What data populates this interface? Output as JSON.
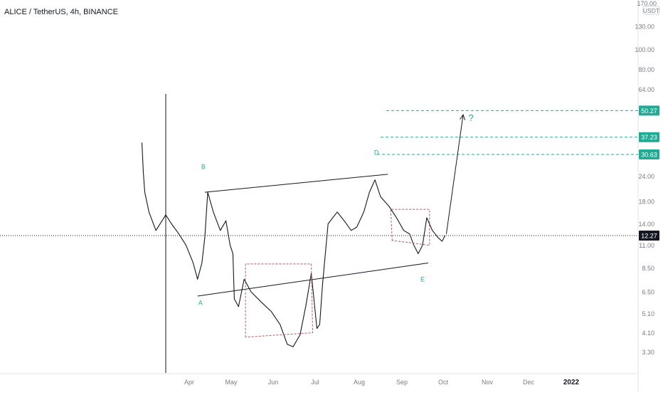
{
  "header": {
    "symbol_title": "ALICE / TetherUS, 4h, BINANCE"
  },
  "axis": {
    "currency_top": "170.00",
    "currency_unit": "USDT"
  },
  "chart_data": {
    "type": "line",
    "title": "ALICE / TetherUS, 4h, BINANCE",
    "scale": "log",
    "ylim": [
      2.9,
      175
    ],
    "x_ticks": [
      "Apr",
      "May",
      "Jun",
      "Jul",
      "Aug",
      "Sep",
      "Oct",
      "Nov",
      "Dec",
      "2022"
    ],
    "y_ticks": [
      130,
      100,
      80,
      64,
      24,
      18,
      14,
      11,
      8.5,
      6.5,
      5.1,
      4.1,
      3.3
    ],
    "y_tick_labels": [
      "130.00",
      "100.00",
      "80.00",
      "64.00",
      "24.00",
      "18.00",
      "14.00",
      "11.00",
      "8.50",
      "6.50",
      "5.10",
      "4.10",
      "3.30"
    ],
    "grid": false,
    "series": [
      {
        "values_x": [
          "Mar 15",
          "Mar 16",
          "Mar 17",
          "Mar 20",
          "Mar 25",
          "Apr 1",
          "Apr 5",
          "Apr 10",
          "Apr 15",
          "Apr 20",
          "Apr 23",
          "Apr 26",
          "Apr 28",
          "May 1",
          "May 5",
          "May 10",
          "May 14",
          "May 17",
          "May 19",
          "May 20",
          "May 23",
          "May 27",
          "Jun 1",
          "Jun 8",
          "Jun 15",
          "Jun 21",
          "Jun 26",
          "Jul 1",
          "Jul 6",
          "Jul 10",
          "Jul 14",
          "Jul 18",
          "Jul 20",
          "Jul 22",
          "Jul 26",
          "Aug 1",
          "Aug 6",
          "Aug 11",
          "Aug 15",
          "Aug 20",
          "Aug 24",
          "Aug 28",
          "Sep 1",
          "Sep 7",
          "Sep 12",
          "Sep 17",
          "Sep 21",
          "Sep 24",
          "Sep 27",
          "Oct 1",
          "Oct 4",
          "Oct 8",
          "Oct 12",
          "Oct 15",
          "Oct 17"
        ],
        "values": [
          35,
          25,
          20,
          16,
          13,
          15.5,
          14,
          12.5,
          11,
          9,
          7.5,
          9,
          12,
          20,
          16,
          13,
          14.5,
          11,
          10,
          6,
          5.5,
          7.5,
          6.5,
          5.8,
          5.2,
          4.5,
          3.6,
          3.5,
          4,
          5.5,
          8,
          4.3,
          4.5,
          7,
          14,
          16,
          14.5,
          13,
          13.5,
          16,
          20,
          23,
          19,
          17,
          15,
          13,
          12.5,
          11,
          10,
          11,
          15,
          13,
          12,
          11.5,
          12.27
        ]
      }
    ],
    "price_levels": [
      {
        "label": "50.27",
        "value": 50.27,
        "color": "#22ab94"
      },
      {
        "label": "37.23",
        "value": 37.23,
        "color": "#22ab94"
      },
      {
        "label": "30.63",
        "value": 30.63,
        "color": "#22ab94"
      }
    ],
    "last_price": {
      "label": "12.27",
      "value": 12.27
    },
    "wave_labels": [
      {
        "text": "A",
        "date": "Apr 25",
        "value": 5.6
      },
      {
        "text": "B",
        "date": "Apr 27",
        "value": 26
      },
      {
        "text": "D",
        "date": "Aug 29",
        "value": 30.5
      },
      {
        "text": "E",
        "date": "Sep 30",
        "value": 7.3
      }
    ],
    "projection": {
      "text": "?",
      "from": [
        "Oct 18",
        12.5
      ],
      "to": [
        "Oct 30",
        48
      ]
    },
    "channel": {
      "lower": [
        [
          "Apr 23",
          6.2
        ],
        [
          "Oct 5",
          9.0
        ]
      ],
      "upper": [
        [
          "Apr 28",
          20
        ],
        [
          "Sep 6",
          24.5
        ]
      ]
    },
    "consolidation_boxes": [
      [
        [
          "May 28",
          3.9
        ],
        [
          "May 28",
          8.9
        ],
        [
          "Jul 14",
          8.9
        ],
        [
          "Jul 15",
          4.1
        ]
      ],
      [
        [
          "Sep 9",
          11.6
        ],
        [
          "Sep 8",
          16.5
        ],
        [
          "Oct 6",
          16.5
        ],
        [
          "Oct 6",
          11.0
        ]
      ]
    ],
    "colors": {
      "line": "#131722",
      "accent": "#22ab94",
      "last_price_bg": "#131722"
    }
  }
}
